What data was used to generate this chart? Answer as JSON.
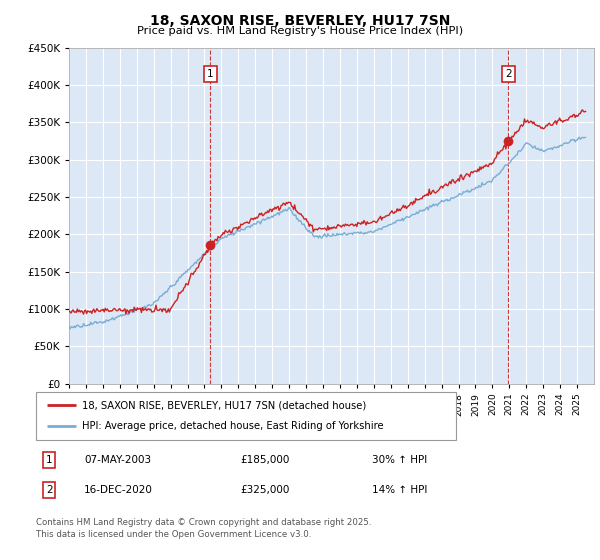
{
  "title": "18, SAXON RISE, BEVERLEY, HU17 7SN",
  "subtitle": "Price paid vs. HM Land Registry's House Price Index (HPI)",
  "ylim": [
    0,
    450000
  ],
  "yticks": [
    0,
    50000,
    100000,
    150000,
    200000,
    250000,
    300000,
    350000,
    400000,
    450000
  ],
  "background_color": "#ddeeff",
  "plot_bg": "#dce8f5",
  "red_color": "#cc2222",
  "blue_color": "#7aadd4",
  "marker1_year": 2003.35,
  "marker1_price": 185000,
  "marker2_year": 2020.95,
  "marker2_price": 325000,
  "legend_line1": "18, SAXON RISE, BEVERLEY, HU17 7SN (detached house)",
  "legend_line2": "HPI: Average price, detached house, East Riding of Yorkshire",
  "footer": "Contains HM Land Registry data © Crown copyright and database right 2025.\nThis data is licensed under the Open Government Licence v3.0.",
  "table_row1": [
    "1",
    "07-MAY-2003",
    "£185,000",
    "30% ↑ HPI"
  ],
  "table_row2": [
    "2",
    "16-DEC-2020",
    "£325,000",
    "14% ↑ HPI"
  ]
}
